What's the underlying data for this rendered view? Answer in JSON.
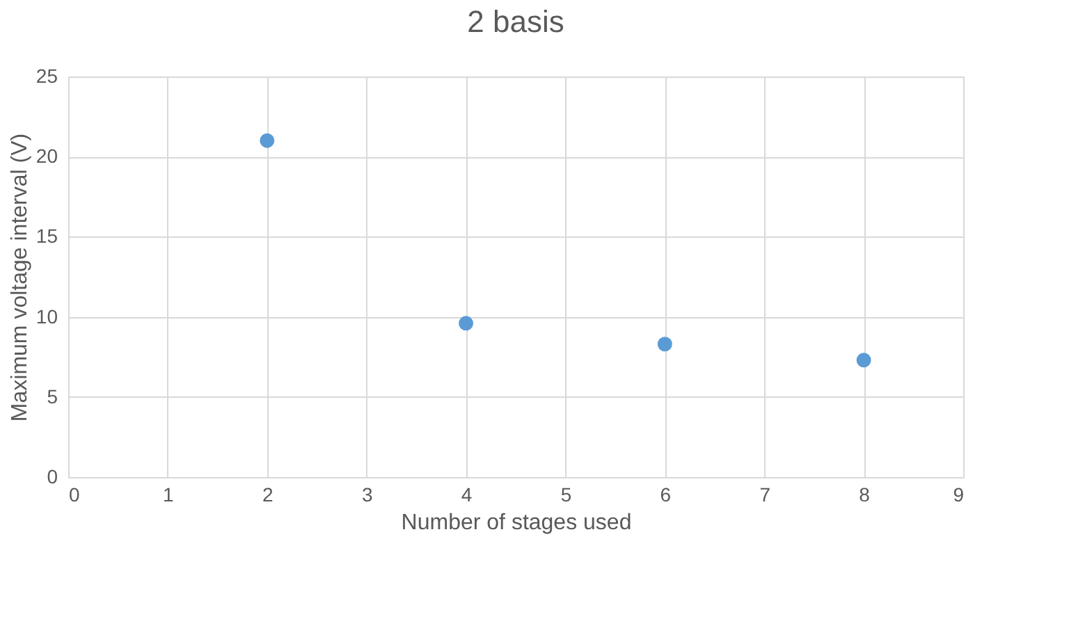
{
  "chart_data": {
    "type": "scatter",
    "title": "2 basis",
    "xlabel": "Number of stages used",
    "ylabel": "Maximum voltage interval (V)",
    "x": [
      2,
      4,
      6,
      8
    ],
    "series": [
      {
        "color": "#5b9bd5",
        "values": [
          21.0,
          9.6,
          8.3,
          7.3
        ]
      }
    ],
    "xlim": [
      0,
      9
    ],
    "xticks": [
      0,
      1,
      2,
      3,
      4,
      5,
      6,
      7,
      8,
      9
    ],
    "ylim": [
      0,
      25
    ],
    "yticks": [
      0,
      5,
      10,
      15,
      20,
      25
    ],
    "grid": true,
    "marker": "circle"
  }
}
